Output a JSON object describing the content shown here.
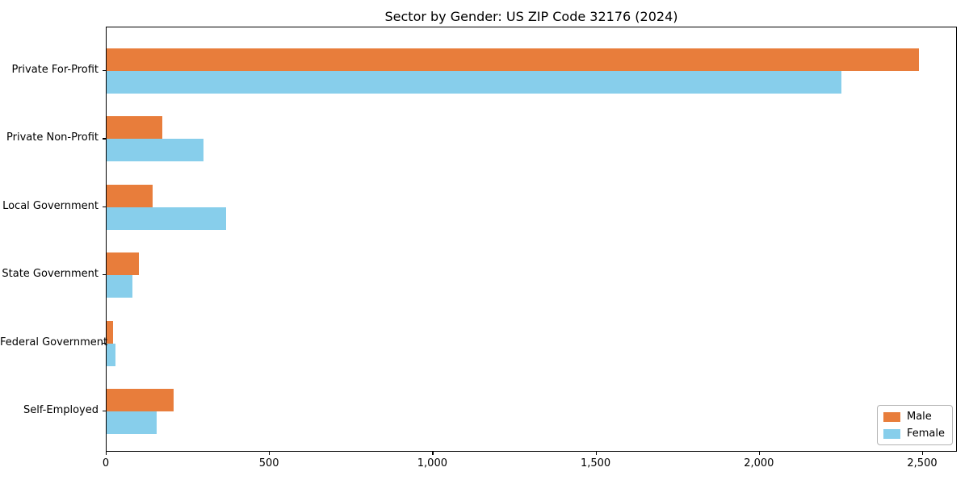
{
  "chart_data": {
    "type": "bar",
    "orientation": "horizontal",
    "title": "Sector by Gender: US ZIP Code 32176 (2024)",
    "categories": [
      "Private For-Profit",
      "Private Non-Profit",
      "Local Government",
      "State Government",
      "Federal Government",
      "Self-Employed"
    ],
    "series": [
      {
        "name": "Male",
        "color": "#E87D3B",
        "values": [
          2488,
          170,
          140,
          100,
          20,
          205
        ]
      },
      {
        "name": "Female",
        "color": "#87CEEB",
        "values": [
          2250,
          297,
          365,
          80,
          27,
          153
        ]
      }
    ],
    "xlabel": "",
    "ylabel": "",
    "xlim": [
      0,
      2606
    ],
    "x_tick_values": [
      0,
      500,
      1000,
      1500,
      2000,
      2500
    ],
    "x_tick_labels": [
      "0",
      "500",
      "1,000",
      "1,500",
      "2,000",
      "2,500"
    ],
    "grid": false,
    "legend": {
      "position": "lower right",
      "entries": [
        "Male",
        "Female"
      ]
    }
  }
}
